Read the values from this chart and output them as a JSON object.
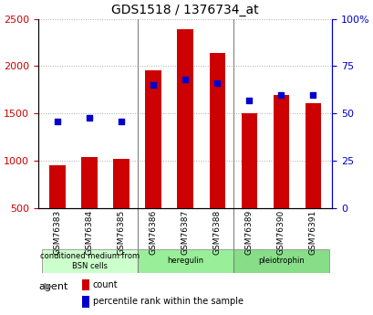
{
  "title": "GDS1518 / 1376734_at",
  "categories": [
    "GSM76383",
    "GSM76384",
    "GSM76385",
    "GSM76386",
    "GSM76387",
    "GSM76388",
    "GSM76389",
    "GSM76390",
    "GSM76391"
  ],
  "counts": [
    950,
    1040,
    1020,
    1960,
    2390,
    2140,
    1500,
    1700,
    1610
  ],
  "percentiles": [
    46,
    48,
    46,
    65,
    68,
    66,
    57,
    60,
    60
  ],
  "bar_color": "#cc0000",
  "dot_color": "#0000cc",
  "groups": [
    {
      "label": "conditioned medium from\nBSN cells",
      "start": 0,
      "end": 3,
      "color": "#ccffcc"
    },
    {
      "label": "heregulin",
      "start": 3,
      "end": 6,
      "color": "#99ee99"
    },
    {
      "label": "pleiotrophin",
      "start": 6,
      "end": 9,
      "color": "#88dd88"
    }
  ],
  "ylim_left": [
    500,
    2500
  ],
  "ylim_right": [
    0,
    100
  ],
  "yticks_left": [
    500,
    1000,
    1500,
    2000,
    2500
  ],
  "yticks_right": [
    0,
    25,
    50,
    75,
    100
  ],
  "ytick_labels_right": [
    "0",
    "25",
    "50",
    "75",
    "100%"
  ],
  "grid_color": "#aaaaaa",
  "bg_color": "#ffffff",
  "plot_bg": "#ffffff",
  "left_axis_color": "#cc0000",
  "right_axis_color": "#0000cc",
  "bar_width": 0.5,
  "agent_label": "agent"
}
